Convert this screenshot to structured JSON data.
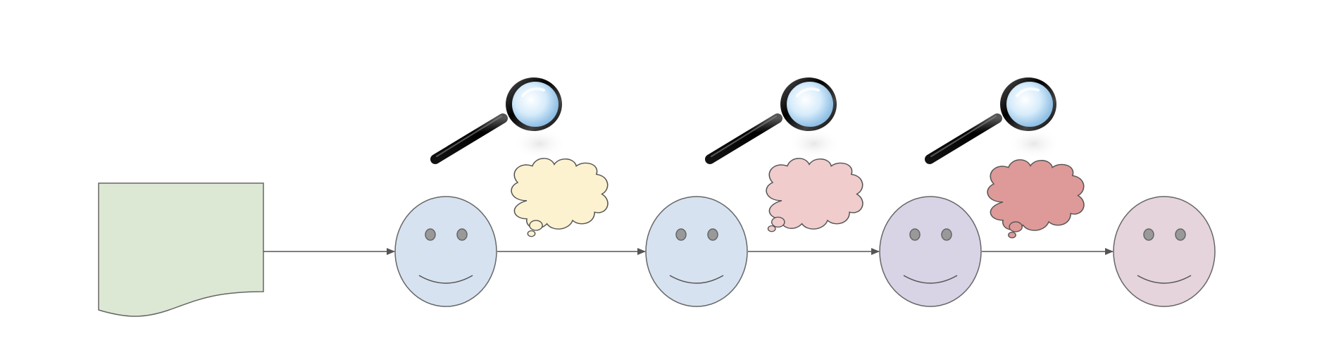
{
  "diagram": {
    "document": {
      "name": "document",
      "fill": "#dde8d4",
      "stroke": "#666666"
    },
    "faces": [
      {
        "name": "face-1",
        "fill": "#d6e2f0"
      },
      {
        "name": "face-2",
        "fill": "#d6e2f0"
      },
      {
        "name": "face-3",
        "fill": "#d8d3e5"
      },
      {
        "name": "face-4",
        "fill": "#e5d4dc"
      }
    ],
    "thought_clouds": [
      {
        "name": "thought-cloud-1",
        "fill": "#fdf2cf"
      },
      {
        "name": "thought-cloud-2",
        "fill": "#f0cccc"
      },
      {
        "name": "thought-cloud-3",
        "fill": "#de9a98"
      }
    ],
    "magnifier_icons": [
      "magnifier-icon-1",
      "magnifier-icon-2",
      "magnifier-icon-3"
    ],
    "connector_color": "#555555",
    "stroke_color": "#666666"
  }
}
